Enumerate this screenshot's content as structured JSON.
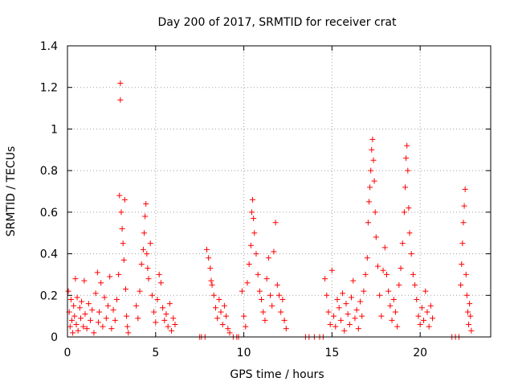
{
  "chart_data": {
    "type": "scatter",
    "title": "Day 200 of 2017, SRMTID for receiver crat",
    "xlabel": "GPS time / hours",
    "ylabel": "SRMTID / TECUs",
    "xlim": [
      0,
      24
    ],
    "ylim": [
      0,
      1.4
    ],
    "xticks": [
      0,
      5,
      10,
      15,
      20
    ],
    "xtick_labels": [
      "0",
      "5",
      "10",
      "15",
      "20"
    ],
    "yticks": [
      0,
      0.2,
      0.4,
      0.6,
      0.8,
      1,
      1.2,
      1.4
    ],
    "ytick_labels": [
      "0",
      "0.2",
      "0.4",
      "0.6",
      "0.8",
      "1",
      "1.2",
      "1.4"
    ],
    "grid": true,
    "marker": "+",
    "color": "#ff0000",
    "series": [
      {
        "name": "SRMTID",
        "points": [
          [
            0.05,
            0.22
          ],
          [
            0.1,
            0.12
          ],
          [
            0.15,
            0.05
          ],
          [
            0.2,
            0.18
          ],
          [
            0.25,
            0.08
          ],
          [
            0.3,
            0.02
          ],
          [
            0.35,
            0.15
          ],
          [
            0.4,
            0.1
          ],
          [
            0.45,
            0.28
          ],
          [
            0.5,
            0.06
          ],
          [
            0.55,
            0.19
          ],
          [
            0.6,
            0.03
          ],
          [
            0.7,
            0.14
          ],
          [
            0.75,
            0.09
          ],
          [
            0.8,
            0.17
          ],
          [
            0.9,
            0.05
          ],
          [
            0.95,
            0.27
          ],
          [
            1.0,
            0.11
          ],
          [
            1.1,
            0.04
          ],
          [
            1.2,
            0.16
          ],
          [
            1.3,
            0.08
          ],
          [
            1.4,
            0.13
          ],
          [
            1.5,
            0.02
          ],
          [
            1.6,
            0.21
          ],
          [
            1.7,
            0.31
          ],
          [
            1.75,
            0.07
          ],
          [
            1.8,
            0.12
          ],
          [
            1.9,
            0.26
          ],
          [
            2.0,
            0.05
          ],
          [
            2.1,
            0.19
          ],
          [
            2.2,
            0.09
          ],
          [
            2.3,
            0.15
          ],
          [
            2.4,
            0.29
          ],
          [
            2.5,
            0.04
          ],
          [
            2.6,
            0.13
          ],
          [
            2.7,
            0.08
          ],
          [
            2.8,
            0.18
          ],
          [
            2.9,
            0.3
          ],
          [
            2.95,
            0.68
          ],
          [
            3.0,
            1.22
          ],
          [
            3.0,
            1.14
          ],
          [
            3.05,
            0.6
          ],
          [
            3.1,
            0.52
          ],
          [
            3.15,
            0.45
          ],
          [
            3.2,
            0.37
          ],
          [
            3.25,
            0.66
          ],
          [
            3.3,
            0.23
          ],
          [
            3.35,
            0.1
          ],
          [
            3.4,
            0.05
          ],
          [
            3.45,
            0.02
          ],
          [
            3.9,
            0.15
          ],
          [
            4.0,
            0.09
          ],
          [
            4.1,
            0.22
          ],
          [
            4.2,
            0.35
          ],
          [
            4.3,
            0.42
          ],
          [
            4.35,
            0.5
          ],
          [
            4.4,
            0.58
          ],
          [
            4.45,
            0.64
          ],
          [
            4.5,
            0.4
          ],
          [
            4.55,
            0.33
          ],
          [
            4.6,
            0.28
          ],
          [
            4.7,
            0.45
          ],
          [
            4.8,
            0.2
          ],
          [
            4.9,
            0.12
          ],
          [
            5.0,
            0.07
          ],
          [
            5.1,
            0.18
          ],
          [
            5.2,
            0.3
          ],
          [
            5.3,
            0.26
          ],
          [
            5.4,
            0.14
          ],
          [
            5.5,
            0.08
          ],
          [
            5.6,
            0.11
          ],
          [
            5.7,
            0.05
          ],
          [
            5.8,
            0.16
          ],
          [
            5.9,
            0.03
          ],
          [
            6.0,
            0.09
          ],
          [
            6.1,
            0.06
          ],
          [
            7.5,
            0.0
          ],
          [
            7.6,
            0.0
          ],
          [
            7.8,
            0.0
          ],
          [
            7.9,
            0.42
          ],
          [
            8.0,
            0.38
          ],
          [
            8.1,
            0.33
          ],
          [
            8.15,
            0.27
          ],
          [
            8.2,
            0.25
          ],
          [
            8.3,
            0.2
          ],
          [
            8.4,
            0.14
          ],
          [
            8.5,
            0.09
          ],
          [
            8.6,
            0.18
          ],
          [
            8.7,
            0.12
          ],
          [
            8.8,
            0.06
          ],
          [
            8.9,
            0.15
          ],
          [
            9.0,
            0.1
          ],
          [
            9.1,
            0.04
          ],
          [
            9.2,
            0.02
          ],
          [
            9.4,
            0.0
          ],
          [
            9.6,
            0.0
          ],
          [
            9.7,
            0.0
          ],
          [
            9.9,
            0.22
          ],
          [
            10.0,
            0.1
          ],
          [
            10.1,
            0.05
          ],
          [
            10.2,
            0.26
          ],
          [
            10.3,
            0.35
          ],
          [
            10.4,
            0.44
          ],
          [
            10.45,
            0.6
          ],
          [
            10.5,
            0.66
          ],
          [
            10.55,
            0.57
          ],
          [
            10.6,
            0.5
          ],
          [
            10.7,
            0.4
          ],
          [
            10.8,
            0.3
          ],
          [
            10.9,
            0.22
          ],
          [
            11.0,
            0.18
          ],
          [
            11.1,
            0.12
          ],
          [
            11.2,
            0.08
          ],
          [
            11.3,
            0.28
          ],
          [
            11.4,
            0.38
          ],
          [
            11.5,
            0.2
          ],
          [
            11.6,
            0.15
          ],
          [
            11.7,
            0.41
          ],
          [
            11.8,
            0.55
          ],
          [
            11.9,
            0.25
          ],
          [
            12.0,
            0.2
          ],
          [
            12.1,
            0.12
          ],
          [
            12.2,
            0.18
          ],
          [
            12.3,
            0.08
          ],
          [
            12.4,
            0.04
          ],
          [
            13.5,
            0.0
          ],
          [
            13.7,
            0.0
          ],
          [
            14.0,
            0.0
          ],
          [
            14.3,
            0.0
          ],
          [
            14.5,
            0.0
          ],
          [
            14.6,
            0.28
          ],
          [
            14.7,
            0.2
          ],
          [
            14.8,
            0.12
          ],
          [
            14.9,
            0.06
          ],
          [
            15.0,
            0.32
          ],
          [
            15.1,
            0.1
          ],
          [
            15.2,
            0.05
          ],
          [
            15.3,
            0.18
          ],
          [
            15.4,
            0.14
          ],
          [
            15.5,
            0.08
          ],
          [
            15.6,
            0.21
          ],
          [
            15.7,
            0.03
          ],
          [
            15.8,
            0.16
          ],
          [
            15.9,
            0.11
          ],
          [
            16.0,
            0.06
          ],
          [
            16.1,
            0.19
          ],
          [
            16.2,
            0.27
          ],
          [
            16.3,
            0.09
          ],
          [
            16.4,
            0.13
          ],
          [
            16.5,
            0.04
          ],
          [
            16.6,
            0.17
          ],
          [
            16.7,
            0.1
          ],
          [
            16.8,
            0.22
          ],
          [
            16.9,
            0.3
          ],
          [
            17.0,
            0.38
          ],
          [
            17.05,
            0.55
          ],
          [
            17.1,
            0.65
          ],
          [
            17.15,
            0.72
          ],
          [
            17.2,
            0.8
          ],
          [
            17.25,
            0.9
          ],
          [
            17.3,
            0.95
          ],
          [
            17.35,
            0.85
          ],
          [
            17.4,
            0.75
          ],
          [
            17.45,
            0.6
          ],
          [
            17.5,
            0.48
          ],
          [
            17.6,
            0.34
          ],
          [
            17.7,
            0.2
          ],
          [
            17.8,
            0.1
          ],
          [
            17.9,
            0.32
          ],
          [
            18.0,
            0.43
          ],
          [
            18.1,
            0.3
          ],
          [
            18.2,
            0.22
          ],
          [
            18.3,
            0.15
          ],
          [
            18.4,
            0.08
          ],
          [
            18.5,
            0.18
          ],
          [
            18.6,
            0.12
          ],
          [
            18.7,
            0.05
          ],
          [
            18.8,
            0.25
          ],
          [
            18.9,
            0.33
          ],
          [
            19.0,
            0.45
          ],
          [
            19.1,
            0.6
          ],
          [
            19.15,
            0.72
          ],
          [
            19.2,
            0.86
          ],
          [
            19.25,
            0.92
          ],
          [
            19.3,
            0.8
          ],
          [
            19.35,
            0.62
          ],
          [
            19.4,
            0.5
          ],
          [
            19.5,
            0.4
          ],
          [
            19.6,
            0.3
          ],
          [
            19.7,
            0.25
          ],
          [
            19.8,
            0.18
          ],
          [
            19.9,
            0.1
          ],
          [
            20.0,
            0.06
          ],
          [
            20.1,
            0.14
          ],
          [
            20.2,
            0.08
          ],
          [
            20.3,
            0.22
          ],
          [
            20.4,
            0.12
          ],
          [
            20.5,
            0.05
          ],
          [
            20.6,
            0.15
          ],
          [
            20.7,
            0.09
          ],
          [
            21.8,
            0.0
          ],
          [
            22.0,
            0.0
          ],
          [
            22.2,
            0.0
          ],
          [
            22.3,
            0.25
          ],
          [
            22.35,
            0.35
          ],
          [
            22.4,
            0.45
          ],
          [
            22.45,
            0.55
          ],
          [
            22.5,
            0.63
          ],
          [
            22.55,
            0.71
          ],
          [
            22.6,
            0.3
          ],
          [
            22.65,
            0.2
          ],
          [
            22.7,
            0.12
          ],
          [
            22.75,
            0.06
          ],
          [
            22.8,
            0.16
          ],
          [
            22.85,
            0.1
          ],
          [
            22.9,
            0.03
          ]
        ]
      }
    ]
  }
}
